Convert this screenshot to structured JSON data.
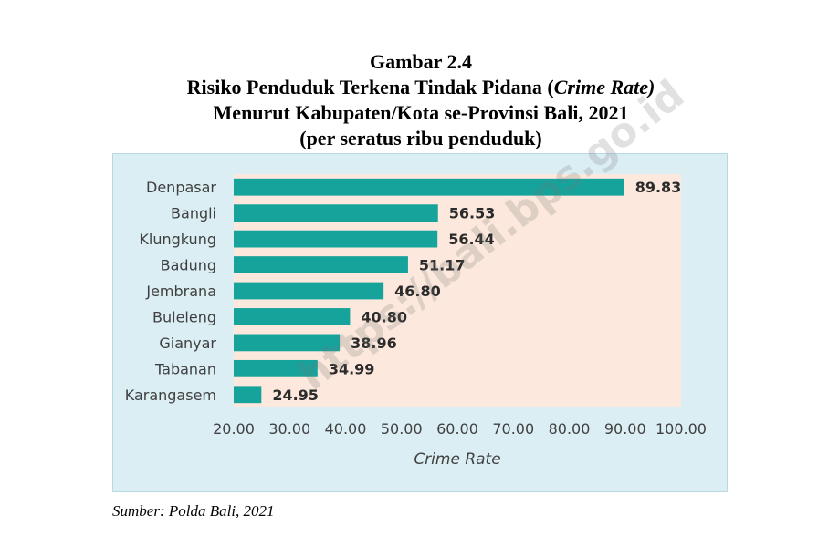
{
  "title": {
    "line1": "Gambar 2.4",
    "line2_prefix": "Risiko Penduduk Terkena Tindak Pidana (",
    "line2_italic": "Crime Rate)",
    "line3": "Menurut Kabupaten/Kota se-Provinsi Bali, 2021",
    "line4": "(per seratus ribu penduduk)"
  },
  "source": "Sumber: Polda Bali, 2021",
  "watermark": "https://bali.bps.go.id",
  "colors": {
    "bar": "#16a39b",
    "plot_bg": "#fce8dc",
    "panel_bg": "#dbeef4",
    "label": "#404040",
    "value_label": "#2b2b2b"
  },
  "chart_data": {
    "type": "bar",
    "orientation": "horizontal",
    "categories": [
      "Denpasar",
      "Bangli",
      "Klungkung",
      "Badung",
      "Jembrana",
      "Buleleng",
      "Gianyar",
      "Tabanan",
      "Karangasem"
    ],
    "values": [
      89.83,
      56.53,
      56.44,
      51.17,
      46.8,
      40.8,
      38.96,
      34.99,
      24.95
    ],
    "value_labels": [
      "89.83",
      "56.53",
      "56.44",
      "51.17",
      "46.80",
      "40.80",
      "38.96",
      "34.99",
      "24.95"
    ],
    "xlabel": "Crime Rate",
    "xlim": [
      20,
      100
    ],
    "xticks": [
      20,
      30,
      40,
      50,
      60,
      70,
      80,
      90,
      100
    ],
    "xtick_labels": [
      "20.00",
      "30.00",
      "40.00",
      "50.00",
      "60.00",
      "70.00",
      "80.00",
      "90.00",
      "100.00"
    ],
    "grid": false,
    "legend": "none"
  }
}
